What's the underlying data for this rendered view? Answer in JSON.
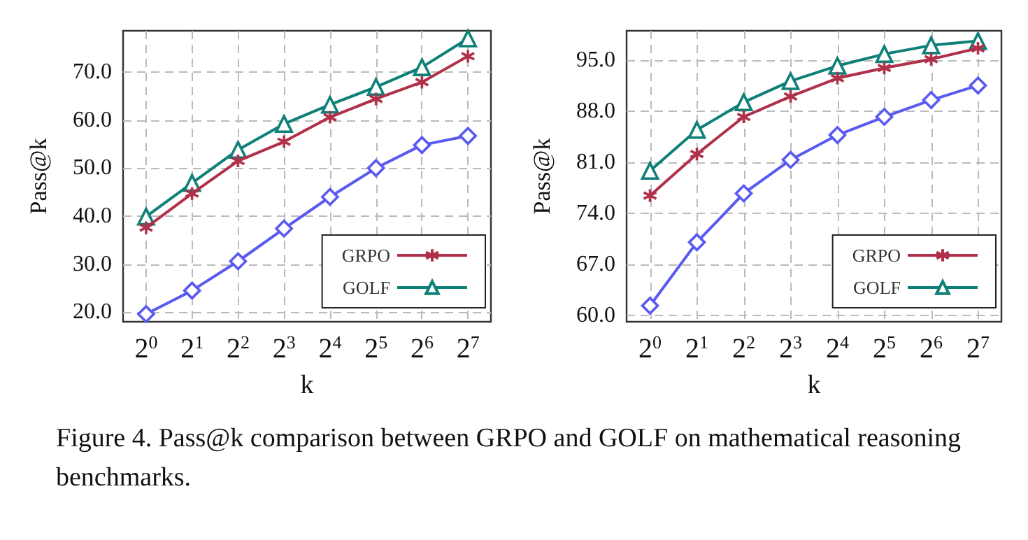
{
  "chart_data": [
    {
      "type": "line",
      "xlabel": "k",
      "ylabel": "Pass@k",
      "categories": [
        "2$^{0}$",
        "2$^{1}$",
        "2$^{2}$",
        "2$^{3}$",
        "2$^{4}$",
        "2$^{5}$",
        "2$^{6}$",
        "2$^{7}$"
      ],
      "series": [
        {
          "color": "#5a5af0",
          "marker": "diamond",
          "values": [
            19.6,
            24.5,
            30.6,
            37.4,
            44.0,
            50.0,
            54.8,
            56.7
          ]
        },
        {
          "name": "GRPO",
          "color": "#b0304a",
          "marker": "cross",
          "values": [
            37.6,
            44.7,
            51.5,
            55.5,
            60.6,
            64.4,
            67.9,
            73.3
          ]
        },
        {
          "name": "GOLF",
          "color": "#0f8078",
          "marker": "triangle",
          "values": [
            39.9,
            46.9,
            53.8,
            59.2,
            63.2,
            66.9,
            71.0,
            77.0
          ]
        }
      ],
      "ylim": [
        18,
        78.6
      ],
      "yticks": [
        {
          "value": 20,
          "label": "20.0"
        },
        {
          "value": 30,
          "label": "30.0"
        },
        {
          "value": 40,
          "label": "40.0"
        },
        {
          "value": 50,
          "label": "50.0"
        },
        {
          "value": 60,
          "label": "60.0"
        },
        {
          "value": 70,
          "label": "70.0"
        }
      ],
      "grid": true,
      "legend": "bottom right",
      "annotations": [
        "Figure 4.  Pass@k comparison between GRPO and GOLF on mathematical reasoning benchmarks."
      ]
    },
    {
      "type": "line",
      "xlabel": "k",
      "ylabel": "Pass@k",
      "categories": [
        "2$^{0}$",
        "2$^{1}$",
        "2$^{2}$",
        "2$^{3}$",
        "2$^{4}$",
        "2$^{5}$",
        "2$^{6}$",
        "2$^{7}$"
      ],
      "series": [
        {
          "color": "#5a5af0",
          "marker": "diamond",
          "values": [
            61.3,
            70.0,
            76.7,
            81.3,
            84.7,
            87.2,
            89.5,
            91.5
          ]
        },
        {
          "name": "GRPO",
          "color": "#b0304a",
          "marker": "cross",
          "values": [
            76.4,
            82.1,
            87.2,
            90.0,
            92.5,
            93.9,
            95.1,
            96.6
          ]
        },
        {
          "name": "GOLF",
          "color": "#0f8078",
          "marker": "triangle",
          "values": [
            79.8,
            85.4,
            89.2,
            92.1,
            94.2,
            95.8,
            97.0,
            97.6
          ]
        }
      ],
      "ylim": [
        59.1,
        99.0
      ],
      "yticks": [
        {
          "value": 60,
          "label": "60.0"
        },
        {
          "value": 67,
          "label": "67.0"
        },
        {
          "value": 74,
          "label": "74.0"
        },
        {
          "value": 81,
          "label": "81.0"
        },
        {
          "value": 88,
          "label": "88.0"
        },
        {
          "value": 95,
          "label": "95.0"
        }
      ],
      "grid": true,
      "legend": "bottom right"
    }
  ]
}
